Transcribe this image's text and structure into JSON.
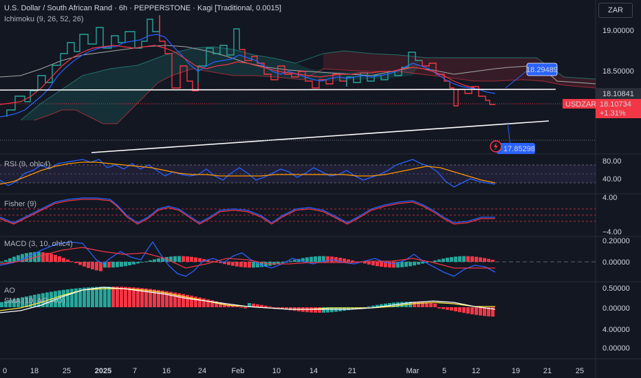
{
  "header": {
    "title": "U.S. Dollar / South African Rand · 6h · PEPPERSTONE · Kagi [Traditional, 0.0015]",
    "indicator": "Ichimoku (9, 26, 52, 26)",
    "currency": "ZAR"
  },
  "price_axis": {
    "ticks": [
      "19.00000",
      "18.50000"
    ],
    "level_line_label": "18.10841",
    "current_symbol": "USDZAR",
    "current_price": "18.10734",
    "current_change": "+1.31%",
    "callout_upper": "18.29489",
    "callout_lower": "17.85298"
  },
  "rsi": {
    "label": "RSI (9, ohlc4)",
    "ticks": [
      "80.00",
      "40.00"
    ]
  },
  "fisher": {
    "label": "Fisher (9)",
    "ticks": [
      "4.00",
      "−4.00"
    ]
  },
  "macd": {
    "label": "MACD (3, 10, ohlc4)",
    "ticks": [
      "0.20000",
      "0.00000"
    ]
  },
  "ao": {
    "label": "AO",
    "sma_label": "SMA (10, AO, AO)",
    "ticks": [
      "0.50000",
      "0.00000",
      "4.00000",
      "0.00000"
    ]
  },
  "time_axis": [
    "0",
    "18",
    "25",
    "2025",
    "7",
    "16",
    "24",
    "Feb",
    "10",
    "14",
    "21",
    "Mar",
    "5",
    "12",
    "19",
    "21",
    "25"
  ],
  "colors": {
    "up": "#26a69a",
    "down": "#f23645",
    "blue": "#2962ff",
    "orange": "#ff9800",
    "bg": "#131722"
  }
}
